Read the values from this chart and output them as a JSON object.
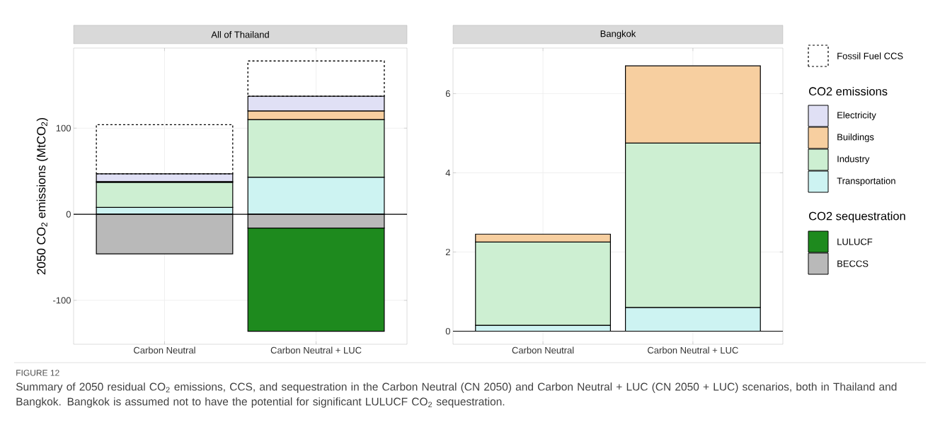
{
  "chart_data": [
    {
      "type": "bar",
      "stacked": true,
      "title": "All of Thailand",
      "ylabel": "2050 CO$_{2}$ emissions (MtCO$_{2}$)",
      "categories": [
        "Carbon Neutral",
        "Carbon Neutral + LUC"
      ],
      "series": [
        {
          "name": "Transportation",
          "color": "#cdf3f2",
          "values": [
            8,
            43
          ]
        },
        {
          "name": "Industry",
          "color": "#cdefd2",
          "values": [
            29,
            67
          ]
        },
        {
          "name": "Buildings",
          "color": "#f7cfa0",
          "values": [
            1,
            10
          ]
        },
        {
          "name": "Electricity",
          "color": "#e0e0f5",
          "values": [
            9,
            17
          ]
        },
        {
          "name": "Fossil Fuel CCS",
          "color": "#000000",
          "line_style": "dashed",
          "values": [
            57,
            41
          ]
        },
        {
          "name": "BECCS",
          "color": "#b9b9b9",
          "values": [
            -46,
            -16
          ]
        },
        {
          "name": "LULUCF",
          "color": "#1e8a1e",
          "values": [
            null,
            -120
          ]
        }
      ],
      "ylim": [
        -151,
        193
      ],
      "yticks": [
        -100,
        0,
        100
      ],
      "grid": true,
      "ref_lines": [
        {
          "axis": "y",
          "value": 0,
          "color": "#000000"
        }
      ],
      "legend": "right",
      "legend_title": "CO2 emissions",
      "annotations": [
        "CO2 sequestration",
        "FIGURE 12",
        "Summary of 2050 residual CO$_{2}$ emissions, CCS, and sequestration in the Carbon Neutral (CN 2050) and Carbon Neutral + LUC (CN 2050 + LUC) scenarios, both in Thailand and Bangkok. Bangkok is assumed not to have the potential for significant LULUCF CO$_{2}$ sequestration."
      ]
    },
    {
      "type": "bar",
      "stacked": true,
      "title": "Bangkok",
      "categories": [
        "Carbon Neutral",
        "Carbon Neutral + LUC"
      ],
      "series": [
        {
          "color": "#cdf3f2",
          "values": [
            0.15,
            0.6
          ]
        },
        {
          "color": "#cdefd2",
          "values": [
            2.1,
            4.15
          ]
        },
        {
          "color": "#f7cfa0",
          "values": [
            0.2,
            1.95
          ]
        }
      ],
      "ylim": [
        -0.33,
        7.15
      ],
      "yticks": [
        0,
        2,
        4,
        6
      ],
      "grid": true,
      "ref_lines": [
        {
          "axis": "y",
          "value": 0,
          "color": "#000000"
        }
      ]
    }
  ]
}
